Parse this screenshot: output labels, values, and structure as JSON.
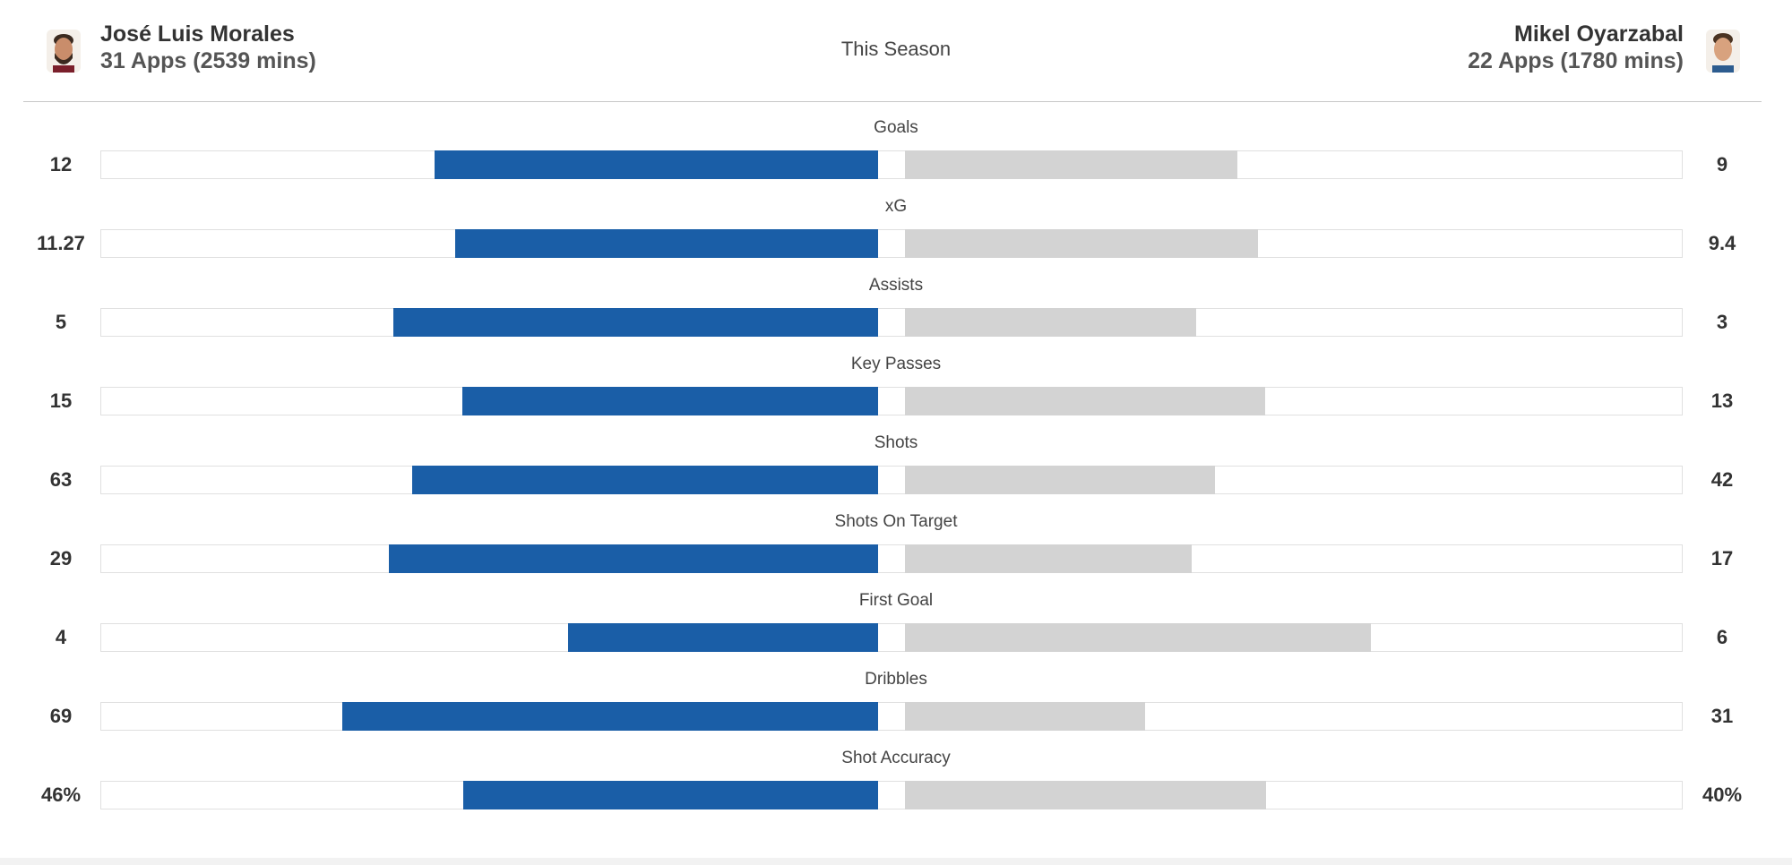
{
  "header": {
    "left_player": {
      "name": "José Luis Morales",
      "apps": "31 Apps (2539 mins)"
    },
    "center_label": "This Season",
    "right_player": {
      "name": "Mikel Oyarzabal",
      "apps": "22 Apps (1780 mins)"
    }
  },
  "colors": {
    "left_bar": "#1a5ea7",
    "right_bar": "#d3d3d3"
  },
  "chart_data": {
    "type": "bar",
    "orientation": "diverging-horizontal",
    "categories": [
      "Goals",
      "xG",
      "Assists",
      "Key Passes",
      "Shots",
      "Shots On Target",
      "First Goal",
      "Dribbles",
      "Shot Accuracy"
    ],
    "series": [
      {
        "name": "José Luis Morales",
        "values": [
          12,
          11.27,
          5,
          15,
          63,
          29,
          4,
          69,
          46
        ],
        "labels": [
          "12",
          "11.27",
          "5",
          "15",
          "63",
          "29",
          "4",
          "69",
          "46%"
        ]
      },
      {
        "name": "Mikel Oyarzabal",
        "values": [
          9,
          9.4,
          3,
          13,
          42,
          17,
          6,
          31,
          40
        ],
        "labels": [
          "9",
          "9.4",
          "3",
          "13",
          "42",
          "17",
          "6",
          "31",
          "40%"
        ]
      }
    ]
  }
}
